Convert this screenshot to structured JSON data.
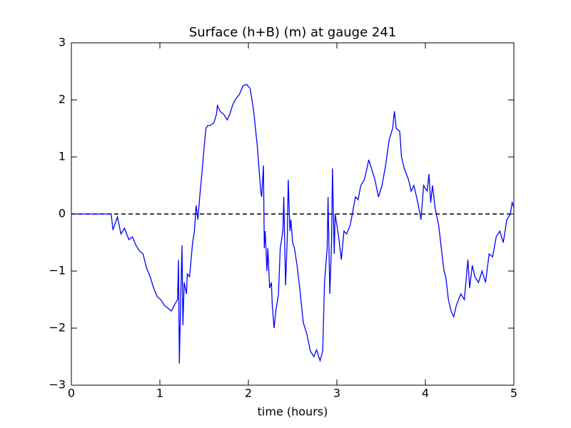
{
  "chart_data": {
    "type": "line",
    "title": "Surface (h+B) (m) at gauge 241",
    "x_label": "time (hours)",
    "xlim": [
      0,
      5
    ],
    "xticks": [
      0,
      1,
      2,
      3,
      4,
      5
    ],
    "ylim": [
      -3,
      3
    ],
    "yticks": [
      {
        "value": -3,
        "label": "−3"
      },
      {
        "value": -2,
        "label": "−2"
      },
      {
        "value": -1,
        "label": "−1"
      },
      0,
      1,
      2,
      3
    ],
    "hline": 0,
    "series": [
      {
        "color": "#0000ff",
        "x": [
          0,
          0.2,
          0.45,
          0.47,
          0.52,
          0.56,
          0.6,
          0.65,
          0.69,
          0.73,
          0.77,
          0.81,
          0.85,
          0.89,
          0.93,
          0.97,
          1.01,
          1.05,
          1.09,
          1.13,
          1.17,
          1.2,
          1.21,
          1.22,
          1.235,
          1.25,
          1.26,
          1.275,
          1.3,
          1.31,
          1.335,
          1.37,
          1.39,
          1.41,
          1.43,
          1.45,
          1.48,
          1.49,
          1.52,
          1.54,
          1.57,
          1.61,
          1.64,
          1.65,
          1.68,
          1.72,
          1.76,
          1.79,
          1.82,
          1.85,
          1.9,
          1.94,
          1.98,
          2.02,
          2.06,
          2.1,
          2.14,
          2.15,
          2.17,
          2.18,
          2.19,
          2.21,
          2.22,
          2.24,
          2.26,
          2.27,
          2.29,
          2.31,
          2.34,
          2.36,
          2.39,
          2.4,
          2.42,
          2.44,
          2.45,
          2.47,
          2.48,
          2.5,
          2.52,
          2.55,
          2.58,
          2.62,
          2.66,
          2.7,
          2.74,
          2.77,
          2.81,
          2.84,
          2.86,
          2.89,
          2.9,
          2.92,
          2.94,
          2.95,
          2.97,
          2.98,
          3.02,
          3.05,
          3.08,
          3.11,
          3.15,
          3.18,
          3.21,
          3.24,
          3.27,
          3.31,
          3.34,
          3.36,
          3.39,
          3.43,
          3.47,
          3.51,
          3.55,
          3.59,
          3.63,
          3.65,
          3.67,
          3.71,
          3.73,
          3.76,
          3.81,
          3.84,
          3.87,
          3.9,
          3.94,
          3.95,
          3.98,
          4.02,
          4.04,
          4.06,
          4.08,
          4.11,
          4.15,
          4.18,
          4.21,
          4.23,
          4.26,
          4.29,
          4.32,
          4.35,
          4.4,
          4.44,
          4.48,
          4.5,
          4.53,
          4.56,
          4.6,
          4.64,
          4.68,
          4.72,
          4.76,
          4.8,
          4.84,
          4.88,
          4.92,
          4.96,
          4.98,
          5
        ],
        "values": [
          0,
          0,
          0,
          -0.28,
          -0.05,
          -0.35,
          -0.25,
          -0.45,
          -0.4,
          -0.55,
          -0.65,
          -0.7,
          -0.95,
          -1.1,
          -1.3,
          -1.45,
          -1.5,
          -1.6,
          -1.65,
          -1.7,
          -1.58,
          -1.5,
          -0.8,
          -2.62,
          -1.5,
          -0.55,
          -1.95,
          -1.2,
          -1.4,
          -1.05,
          -1.1,
          -0.5,
          -0.3,
          0.15,
          -0.1,
          0.3,
          0.8,
          1.0,
          1.5,
          1.55,
          1.55,
          1.6,
          1.75,
          1.9,
          1.8,
          1.75,
          1.65,
          1.75,
          1.9,
          2.0,
          2.1,
          2.25,
          2.27,
          2.2,
          1.8,
          1.2,
          0.4,
          0.3,
          0.85,
          -0.6,
          -0.3,
          -1.0,
          -0.6,
          -1.3,
          -1.2,
          -1.6,
          -2.0,
          -1.7,
          -1.4,
          -0.6,
          -0.3,
          0.3,
          -1.25,
          -0.4,
          0.6,
          -0.3,
          -0.1,
          -0.5,
          -0.6,
          -0.9,
          -1.3,
          -1.9,
          -2.1,
          -2.4,
          -2.5,
          -2.38,
          -2.57,
          -2.4,
          -1.2,
          -0.6,
          0.3,
          -1.4,
          -0.5,
          0.8,
          -0.7,
          0.0,
          -0.4,
          -0.8,
          -0.3,
          -0.35,
          -0.2,
          0.05,
          0.3,
          0.25,
          0.5,
          0.6,
          0.8,
          0.95,
          0.8,
          0.6,
          0.3,
          0.5,
          0.85,
          1.3,
          1.5,
          1.8,
          1.5,
          1.45,
          1.0,
          0.8,
          0.6,
          0.4,
          0.5,
          0.3,
          0.0,
          -0.1,
          0.5,
          0.4,
          0.7,
          0.2,
          0.5,
          0.1,
          -0.2,
          -0.6,
          -1.0,
          -1.1,
          -1.5,
          -1.7,
          -1.8,
          -1.6,
          -1.4,
          -1.5,
          -0.8,
          -1.3,
          -0.9,
          -1.1,
          -1.2,
          -1.0,
          -1.2,
          -0.7,
          -0.75,
          -0.4,
          -0.3,
          -0.5,
          -0.1,
          0.0,
          0.2,
          0.12
        ]
      }
    ]
  }
}
